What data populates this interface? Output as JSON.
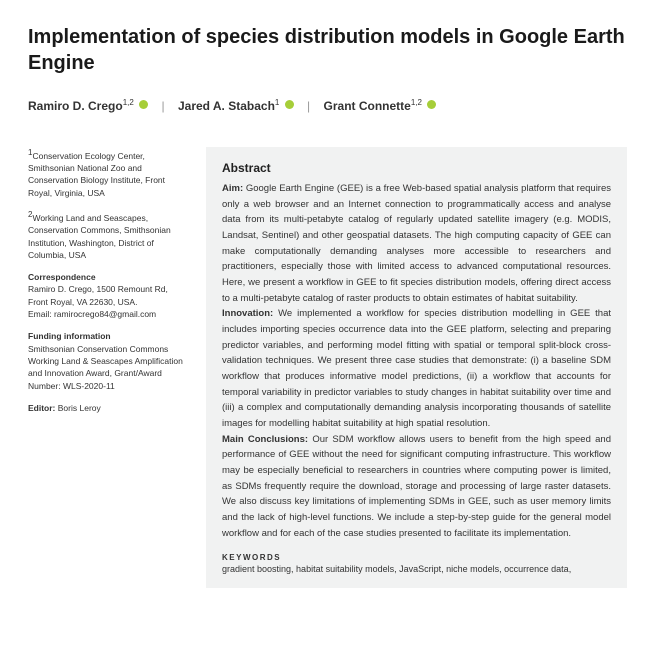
{
  "title": "Implementation of species distribution models in Google Earth Engine",
  "authors": [
    {
      "name": "Ramiro D. Crego",
      "aff": "1,2"
    },
    {
      "name": "Jared A. Stabach",
      "aff": "1"
    },
    {
      "name": "Grant Connette",
      "aff": "1,2"
    }
  ],
  "affiliations": {
    "a1": "Conservation Ecology Center, Smithsonian National Zoo and Conservation Biology Institute, Front Royal, Virginia, USA",
    "a2": "Working Land and Seascapes, Conservation Commons, Smithsonian Institution, Washington, District of Columbia, USA"
  },
  "correspondence": {
    "head": "Correspondence",
    "body": "Ramiro D. Crego, 1500 Remount Rd, Front Royal, VA 22630, USA.",
    "email": "Email: ramirocrego84@gmail.com"
  },
  "funding": {
    "head": "Funding information",
    "body": "Smithsonian Conservation Commons Working Land & Seascapes Amplification and Innovation Award, Grant/Award Number: WLS-2020-11"
  },
  "editor": {
    "label": "Editor:",
    "name": "Boris Leroy"
  },
  "abstract": {
    "heading": "Abstract",
    "aim_label": "Aim:",
    "aim": " Google Earth Engine (GEE) is a free Web-based spatial analysis platform that requires only a web browser and an Internet connection to programmatically access and analyse data from its multi-petabyte catalog of regularly updated satellite imagery (e.g. MODIS, Landsat, Sentinel) and other geospatial datasets. The high computing capacity of GEE can make computationally demanding analyses more accessible to researchers and practitioners, especially those with limited access to advanced computational resources. Here, we present a workflow in GEE to fit species distribution models, offering direct access to a multi-petabyte catalog of raster products to obtain estimates of habitat suitability.",
    "innov_label": "Innovation:",
    "innov": " We implemented a workflow for species distribution modelling in GEE that includes importing species occurrence data into the GEE platform, selecting and preparing predictor variables, and performing model fitting with spatial or temporal split-block cross-validation techniques. We present three case studies that demonstrate: (i) a baseline SDM workflow that produces informative model predictions, (ii) a workflow that accounts for temporal variability in predictor variables to study changes in habitat suitability over time and (iii) a complex and computationally demanding analysis incorporating thousands of satellite images for modelling habitat suitability at high spatial resolution.",
    "conc_label": "Main Conclusions:",
    "conc": " Our SDM workflow allows users to benefit from the high speed and performance of GEE without the need for significant computing infrastructure. This workflow may be especially beneficial to researchers in countries where computing power is limited, as SDMs frequently require the download, storage and processing of large raster datasets. We also discuss key limitations of implementing SDMs in GEE, such as user memory limits and the lack of high-level functions. We include a step-by-step guide for the general model workflow and for each of the case studies presented to facilitate its implementation.",
    "keywords_head": "KEYWORDS",
    "keywords": "gradient boosting, habitat suitability models, JavaScript, niche models, occurrence data,"
  }
}
